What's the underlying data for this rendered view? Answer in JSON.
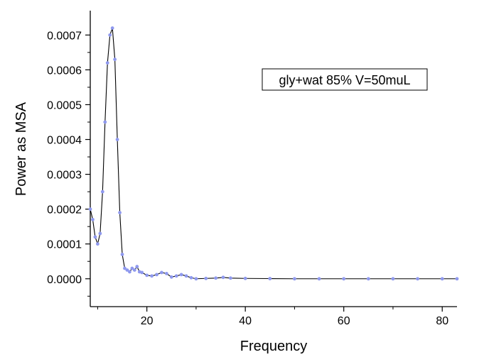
{
  "chart_data": {
    "type": "scatter",
    "title": "",
    "xlabel": "Frequency",
    "ylabel": "Power as MSA",
    "xlim": [
      8.5,
      83
    ],
    "ylim": [
      -8e-05,
      0.00077
    ],
    "x_ticks": [
      20,
      40,
      60,
      80
    ],
    "x_tick_labels": [
      "20",
      "40",
      "60",
      "80"
    ],
    "y_ticks": [
      0.0,
      0.0001,
      0.0002,
      0.0003,
      0.0004,
      0.0005,
      0.0006,
      0.0007
    ],
    "y_tick_labels": [
      "0.0000",
      "0.0001",
      "0.0002",
      "0.0003",
      "0.0004",
      "0.0005",
      "0.0006",
      "0.0007"
    ],
    "grid": false,
    "legend_position": "top-right",
    "annotation": "gly+wat 85% V=50muL",
    "series": [
      {
        "color": "#8f99ee",
        "line_color": "#000000",
        "marker": "dot",
        "x": [
          8.5,
          9.0,
          9.5,
          10.0,
          10.5,
          11.0,
          11.5,
          12.0,
          12.5,
          13.0,
          13.5,
          14.0,
          14.5,
          15.0,
          15.5,
          16.0,
          16.5,
          17.0,
          17.5,
          18.0,
          18.5,
          19.0,
          20.0,
          21.0,
          22.0,
          23.0,
          24.0,
          25.0,
          26.0,
          27.0,
          28.0,
          29.0,
          30.0,
          32.0,
          34.0,
          35.5,
          37.0,
          40.0,
          45.0,
          50.0,
          55.0,
          60.0,
          65.0,
          70.0,
          75.0,
          80.0,
          83.0
        ],
        "y": [
          0.0002,
          0.00017,
          0.00012,
          0.0001,
          0.00013,
          0.00025,
          0.00045,
          0.00062,
          0.0007,
          0.00072,
          0.00063,
          0.0004,
          0.00019,
          7e-05,
          3e-05,
          2.5e-05,
          2e-05,
          3e-05,
          2.5e-05,
          3.5e-05,
          2e-05,
          1.8e-05,
          1e-05,
          8e-06,
          1.2e-05,
          1.8e-05,
          1.5e-05,
          5e-06,
          8e-06,
          1.2e-05,
          8e-06,
          3e-06,
          0.0,
          1e-06,
          2e-06,
          4e-06,
          2e-06,
          1e-06,
          5e-07,
          0.0,
          0.0,
          0.0,
          0.0,
          0.0,
          0.0,
          0.0,
          0.0
        ]
      }
    ]
  }
}
